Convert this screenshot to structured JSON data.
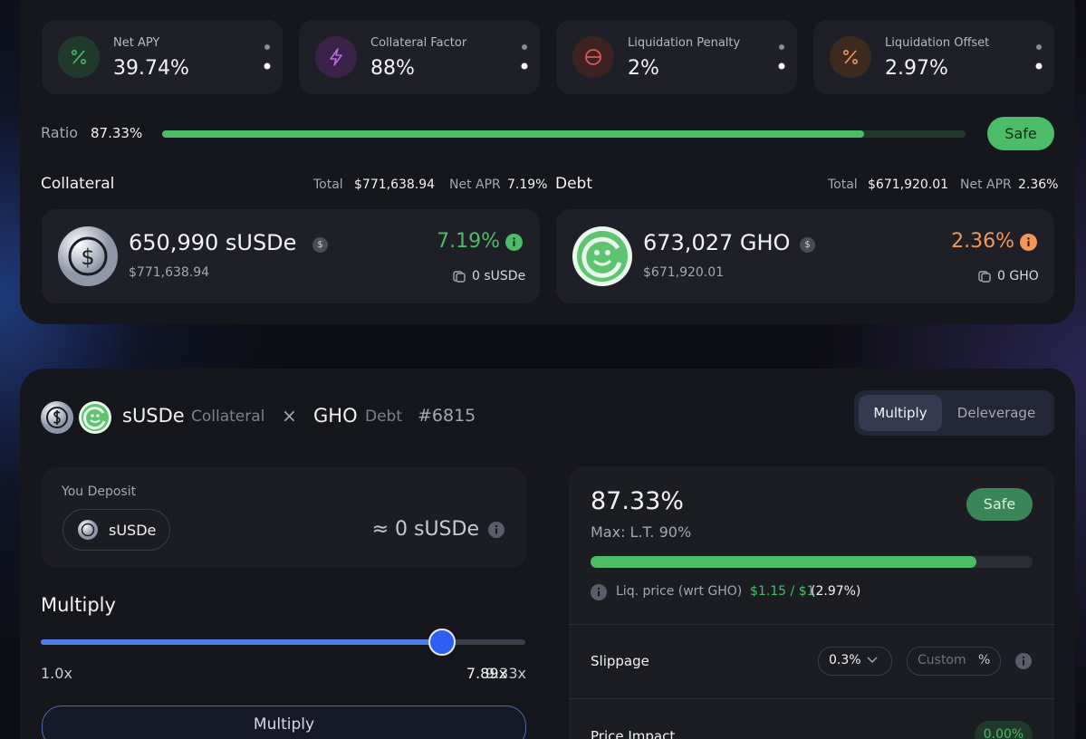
{
  "stats": [
    {
      "label": "Net APY",
      "value": "39.74%"
    },
    {
      "label": "Collateral Factor",
      "value": "88%"
    },
    {
      "label": "Liquidation Penalty",
      "value": "2%"
    },
    {
      "label": "Liquidation Offset",
      "value": "2.97%"
    }
  ],
  "ratio": {
    "label": "Ratio",
    "value": 87.33,
    "value_label": "87.33%",
    "status": "Safe"
  },
  "collateral": {
    "heading": "Collateral",
    "total_label": "Total",
    "total": "$771,638.94",
    "apr_label": "Net APR",
    "apr": "7.19%",
    "amount": "650,990 sUSDe",
    "badge": "$",
    "usd": "$771,638.94",
    "rate": "7.19%",
    "balance": "0 sUSDe"
  },
  "debt": {
    "heading": "Debt",
    "total_label": "Total",
    "total": "$671,920.01",
    "apr_label": "Net APR",
    "apr": "2.36%",
    "amount": "673,027 GHO",
    "badge": "$",
    "usd": "$671,920.01",
    "rate": "2.36%",
    "balance": "0 GHO"
  },
  "position": {
    "collateral_token": "sUSDe",
    "collateral_label": "Collateral",
    "separator": "×",
    "debt_token": "GHO",
    "debt_label": "Debt",
    "id": "#6815"
  },
  "tabs": [
    "Multiply",
    "Deleverage"
  ],
  "deposit": {
    "label": "You Deposit",
    "token": "sUSDe",
    "amount": "≈ 0 sUSDe"
  },
  "multiplier": {
    "label": "Multiply",
    "min": 1.0,
    "min_label": "1.0x",
    "value": 7.89,
    "value_label": "7.89x",
    "max": 9.33,
    "max_label": "9.33x",
    "button": "Multiply"
  },
  "health": {
    "ratio": 87.33,
    "ratio_label": "87.33%",
    "max": "Max: L.T. 90%",
    "status": "Safe",
    "liq_label": "Liq. price (wrt GHO)",
    "liq_price": "$1.15 / $1",
    "liq_offset": "(2.97%)"
  },
  "slippage": {
    "label": "Slippage",
    "value": "0.3%",
    "custom": "Custom",
    "unit": "%"
  },
  "price_impact": {
    "label": "Price Impact",
    "value": "0.00%"
  }
}
